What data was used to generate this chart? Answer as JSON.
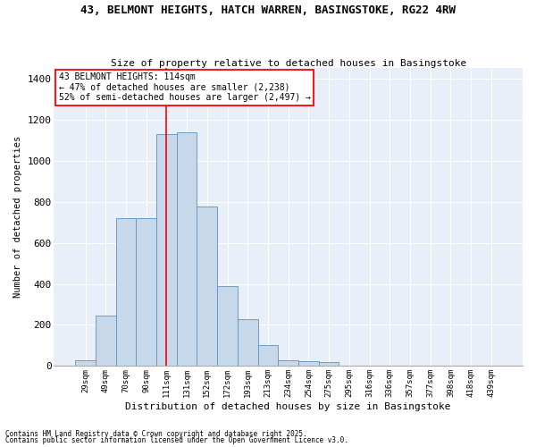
{
  "title_line1": "43, BELMONT HEIGHTS, HATCH WARREN, BASINGSTOKE, RG22 4RW",
  "title_line2": "Size of property relative to detached houses in Basingstoke",
  "xlabel": "Distribution of detached houses by size in Basingstoke",
  "ylabel": "Number of detached properties",
  "categories": [
    "29sqm",
    "49sqm",
    "70sqm",
    "90sqm",
    "111sqm",
    "131sqm",
    "152sqm",
    "172sqm",
    "193sqm",
    "213sqm",
    "234sqm",
    "254sqm",
    "275sqm",
    "295sqm",
    "316sqm",
    "336sqm",
    "357sqm",
    "377sqm",
    "398sqm",
    "418sqm",
    "439sqm"
  ],
  "values": [
    30,
    245,
    718,
    718,
    1130,
    1140,
    775,
    390,
    230,
    100,
    30,
    25,
    20,
    0,
    0,
    0,
    0,
    0,
    0,
    0,
    0
  ],
  "bar_color": "#c8d8eb",
  "bar_edge_color": "#6090bb",
  "vline_color": "red",
  "vline_position": 4.5,
  "annotation_title": "43 BELMONT HEIGHTS: 114sqm",
  "annotation_line2": "← 47% of detached houses are smaller (2,238)",
  "annotation_line3": "52% of semi-detached houses are larger (2,497) →",
  "annotation_box_color": "red",
  "ylim": [
    0,
    1450
  ],
  "yticks": [
    0,
    200,
    400,
    600,
    800,
    1000,
    1200,
    1400
  ],
  "bg_color": "#e8eff8",
  "grid_color": "#ffffff",
  "footnote1": "Contains HM Land Registry data © Crown copyright and database right 2025.",
  "footnote2": "Contains public sector information licensed under the Open Government Licence v3.0."
}
